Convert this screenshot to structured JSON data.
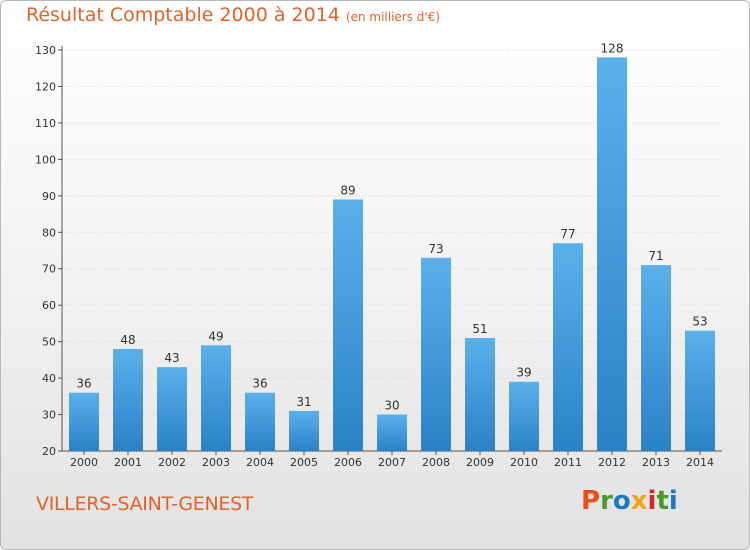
{
  "header": {
    "title": "Résultat Comptable 2000 à 2014",
    "subtitle": "(en milliers d'€)"
  },
  "footer": {
    "commune": "VILLERS-SAINT-GENEST",
    "logo": "Proxiti"
  },
  "colors": {
    "title": "#e0632b",
    "bar_top": "#5cb0ea",
    "bar_bottom": "#2a82c6",
    "logo": [
      "#e94e1b",
      "#4a9a2b",
      "#1a7bc0",
      "#f2a516",
      "#d8262c",
      "#4a9a2b",
      "#1a7bc0"
    ]
  },
  "chart_data": {
    "type": "bar",
    "categories": [
      "2000",
      "2001",
      "2002",
      "2003",
      "2004",
      "2005",
      "2006",
      "2007",
      "2008",
      "2009",
      "2010",
      "2011",
      "2012",
      "2013",
      "2014"
    ],
    "values": [
      36,
      48,
      43,
      49,
      36,
      31,
      89,
      30,
      73,
      51,
      39,
      77,
      128,
      71,
      53
    ],
    "ylim": [
      20,
      130
    ],
    "yticks": [
      20,
      30,
      40,
      50,
      60,
      70,
      80,
      90,
      100,
      110,
      120,
      130
    ],
    "grid": true
  }
}
